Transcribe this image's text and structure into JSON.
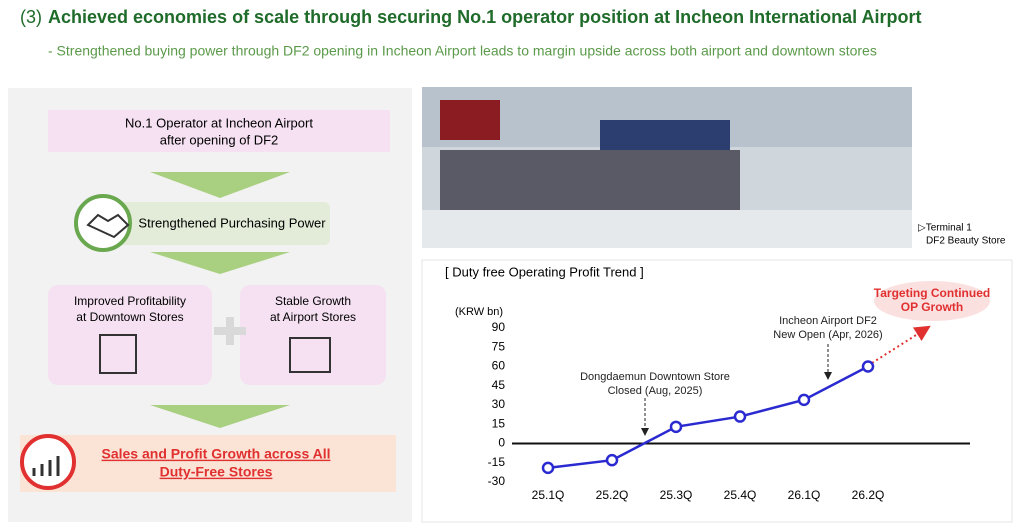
{
  "header": {
    "number": "(3)",
    "title": "Achieved economies of scale through securing No.1 operator position at Incheon International Airport",
    "subtitle": "- Strengthened buying power through DF2 opening in Incheon Airport leads to margin upside across both airport and downtown stores"
  },
  "diagram": {
    "top": [
      "No.1 Operator at Incheon Airport",
      "after opening of DF2"
    ],
    "middle": "Strengthened Purchasing Power",
    "left": [
      "Improved Profitability",
      "at Downtown Stores"
    ],
    "right": [
      "Stable Growth",
      "at Airport Stores"
    ],
    "bottom": [
      "Sales and Profit Growth across All",
      "Duty-Free Stores"
    ]
  },
  "photo": {
    "caption": [
      "▷Terminal 1",
      "DF2 Beauty Store"
    ]
  },
  "chart_data": {
    "type": "line",
    "title": "[ Duty free Operating Profit Trend ]",
    "y_label": "(KRW bn)",
    "categories": [
      "25.1Q",
      "25.2Q",
      "25.3Q",
      "25.4Q",
      "26.1Q",
      "26.2Q"
    ],
    "values": [
      -19,
      -13,
      13,
      21,
      34,
      60
    ],
    "color": "#2a2ad0",
    "ylim": [
      -30,
      90
    ],
    "yticks": [
      -30,
      -15,
      0,
      15,
      30,
      45,
      60,
      75,
      90
    ],
    "grid": false,
    "annotations": [
      {
        "lines": [
          "Dongdaemun Downtown Store",
          "Closed (Aug, 2025)"
        ]
      },
      {
        "lines": [
          "Incheon Airport DF2",
          "New Open (Apr, 2026)"
        ]
      },
      {
        "lines": [
          "Targeting Continued",
          "OP Growth"
        ]
      }
    ]
  }
}
